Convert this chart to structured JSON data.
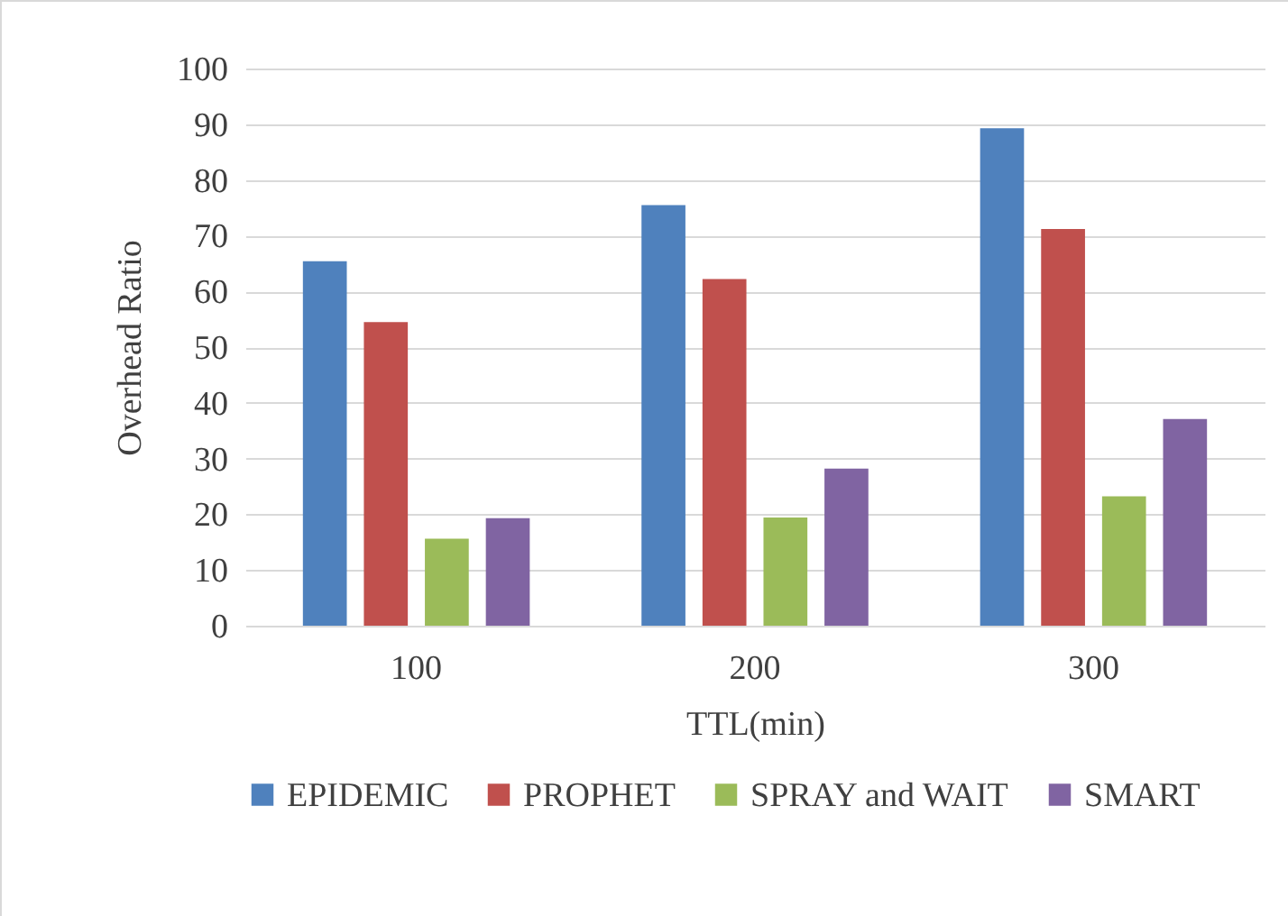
{
  "chart_data": {
    "type": "bar",
    "xlabel": "TTL(min)",
    "ylabel": "Overhead Ratio",
    "categories": [
      "100",
      "200",
      "300"
    ],
    "series": [
      {
        "name": "EPIDEMIC",
        "color": "#4f81bd",
        "values": [
          65.4,
          75.5,
          89.3
        ]
      },
      {
        "name": "PROPHET",
        "color": "#c0504d",
        "values": [
          54.5,
          62.2,
          71.2
        ]
      },
      {
        "name": "SPRAY and WAIT",
        "color": "#9bbb59",
        "values": [
          15.6,
          19.4,
          23.2
        ]
      },
      {
        "name": "SMART",
        "color": "#8064a2",
        "values": [
          19.3,
          28.2,
          37.1
        ]
      }
    ],
    "ylim": [
      0,
      100
    ],
    "yticks": [
      0,
      10,
      20,
      30,
      40,
      50,
      60,
      70,
      80,
      90,
      100
    ],
    "grid": "y",
    "legend": "bottom"
  }
}
